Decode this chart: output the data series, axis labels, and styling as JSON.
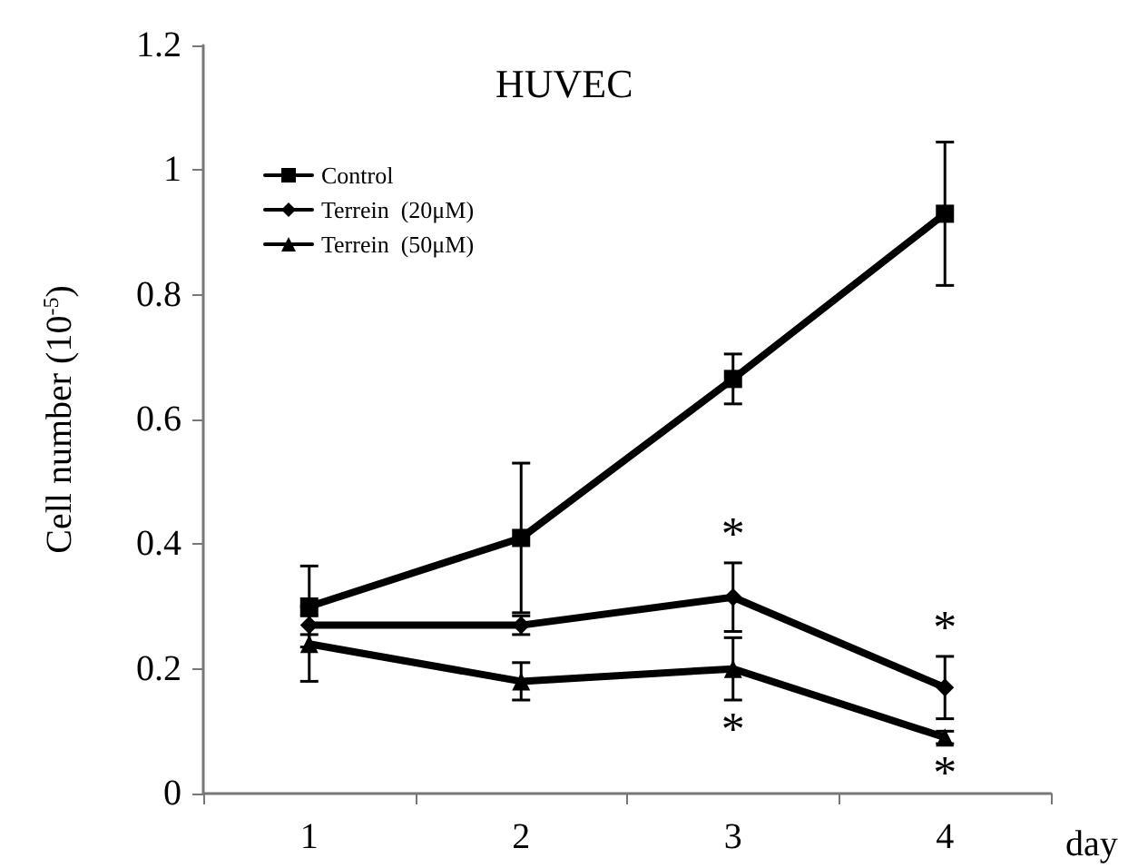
{
  "chart_data": {
    "type": "line",
    "title": "HUVEC",
    "xlabel": "day",
    "ylabel": "Cell number (10$^{-5}$)",
    "categories": [
      "1",
      "2",
      "3",
      "4"
    ],
    "series": [
      {
        "name": "Control",
        "color": "#000000",
        "marker": "square",
        "values": [
          0.3,
          0.41,
          0.665,
          0.93
        ],
        "errors": [
          0.065,
          0.12,
          0.04,
          0.115
        ]
      },
      {
        "name": "Terrein  (20μM)",
        "color": "#000000",
        "marker": "diamond",
        "values": [
          0.27,
          0.27,
          0.315,
          0.17
        ],
        "errors": [
          0.015,
          0.015,
          0.055,
          0.05
        ]
      },
      {
        "name": "Terrein  (50μM)",
        "color": "#000000",
        "marker": "triangle",
        "values": [
          0.24,
          0.18,
          0.2,
          0.09
        ],
        "errors": [
          0.06,
          0.03,
          0.05,
          0.01
        ]
      }
    ],
    "annotations": [
      {
        "text": "*",
        "x": "3",
        "y": 0.315
      },
      {
        "text": "*",
        "x": "4",
        "y": 0.17
      },
      {
        "text": "*",
        "x": "3",
        "y": 0.2
      },
      {
        "text": "*",
        "x": "4",
        "y": 0.09
      }
    ],
    "ylim": [
      0,
      1.2
    ],
    "yticks": [
      0,
      0.2,
      0.4,
      0.6,
      0.8,
      1,
      1.2
    ],
    "grid": false,
    "legend": "top left",
    "line_style": "solid"
  }
}
